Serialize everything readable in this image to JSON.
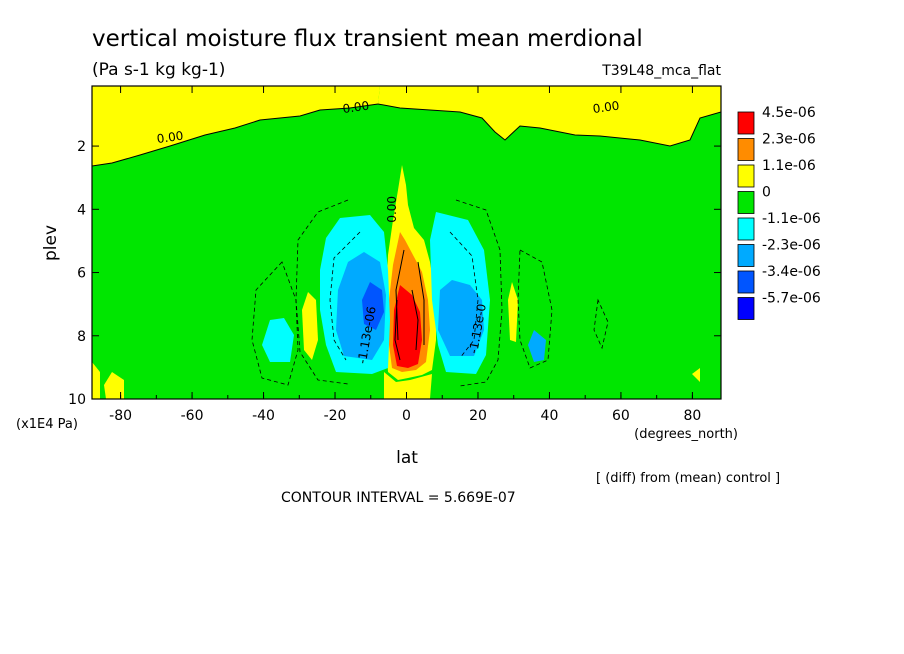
{
  "chart_data": {
    "type": "contour",
    "title": "vertical moisture flux transient mean merdional",
    "units": "(Pa s-1 kg kg-1)",
    "run_label": "T39L48_mca_flat",
    "xlabel": "lat",
    "x_units": "(degrees_north)",
    "ylabel": "plev",
    "y_units": "(x1E4 Pa)",
    "xlim": [
      -88,
      88
    ],
    "ylim": [
      10,
      0.1
    ],
    "x_ticks": [
      {
        "value": -80,
        "label": "-80"
      },
      {
        "value": -60,
        "label": "-60"
      },
      {
        "value": -40,
        "label": "-40"
      },
      {
        "value": -20,
        "label": "-20"
      },
      {
        "value": 0,
        "label": "0"
      },
      {
        "value": 20,
        "label": "20"
      },
      {
        "value": 40,
        "label": "40"
      },
      {
        "value": 60,
        "label": "60"
      },
      {
        "value": 80,
        "label": "80"
      }
    ],
    "y_ticks": [
      {
        "value": 2,
        "label": "2"
      },
      {
        "value": 4,
        "label": "4"
      },
      {
        "value": 6,
        "label": "6"
      },
      {
        "value": 8,
        "label": "8"
      },
      {
        "value": 10,
        "label": "10"
      }
    ],
    "contour_interval_text": "CONTOUR INTERVAL = 5.669E-07",
    "note": "[ (diff) from (mean) control ]",
    "legend": [
      {
        "label": "4.5e-06",
        "color": "#ff0000"
      },
      {
        "label": "2.3e-06",
        "color": "#ff8c00"
      },
      {
        "label": "1.1e-06",
        "color": "#ffff00"
      },
      {
        "label": "0",
        "color": "#00e600"
      },
      {
        "label": "-1.1e-06",
        "color": "#00ffff"
      },
      {
        "label": "-2.3e-06",
        "color": "#00aaff"
      },
      {
        "label": "-3.4e-06",
        "color": "#0055ff"
      },
      {
        "label": "-5.7e-06",
        "color": "#0000ff"
      }
    ],
    "contour_labels": [
      {
        "text": "0.00",
        "lat": -66,
        "plev": 1.85
      },
      {
        "text": "0.00",
        "lat": -14,
        "plev": 0.9
      },
      {
        "text": "0.00",
        "lat": 56,
        "plev": 0.9
      },
      {
        "text": "0.00",
        "lat": -3,
        "plev": 4.0
      },
      {
        "text": "-1.13e-06",
        "lat": -10,
        "plev": 8.0
      },
      {
        "text": "-1.13e-0",
        "lat": 21,
        "plev": 7.8
      }
    ]
  }
}
